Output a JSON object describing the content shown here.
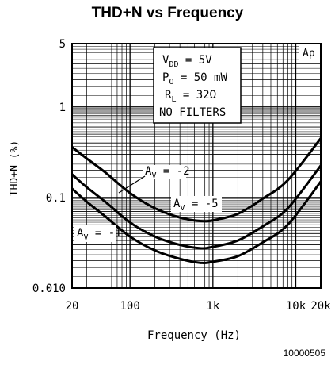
{
  "figure_id": "10000505",
  "colors": {
    "ink": "#000000",
    "background": "#ffffff"
  },
  "chart_data": {
    "type": "line",
    "title": "THD+N vs Frequency",
    "xlabel": "Frequency (Hz)",
    "ylabel": "THD+N (%)",
    "x_scale": "log",
    "y_scale": "log",
    "xlim": [
      20,
      20000
    ],
    "ylim": [
      0.01,
      5
    ],
    "grid": true,
    "x_ticks": [
      {
        "value": 20,
        "label": "20"
      },
      {
        "value": 100,
        "label": "100"
      },
      {
        "value": 1000,
        "label": "1k"
      },
      {
        "value": 10000,
        "label": "10k"
      },
      {
        "value": 20000,
        "label": "20k"
      }
    ],
    "y_ticks": [
      {
        "value": 5,
        "label": "5"
      },
      {
        "value": 1,
        "label": "1"
      },
      {
        "value": 0.1,
        "label": "0.1"
      },
      {
        "value": 0.01,
        "label": "0.010"
      }
    ],
    "conditions_box": {
      "vdd": {
        "main": "V",
        "sub": "DD",
        "rest": " = 5V"
      },
      "po": {
        "main": "P",
        "sub": "O",
        "rest": " = 50 mW"
      },
      "rl": {
        "main": "R",
        "sub": "L",
        "rest": " = 32Ω"
      },
      "filters": "NO FILTERS"
    },
    "corner_label": "Ap",
    "series": [
      {
        "label_main": "A",
        "label_sub": "V",
        "label_rest": " = -1",
        "x": [
          20,
          30,
          50,
          100,
          200,
          400,
          700,
          1000,
          2000,
          4000,
          8000,
          20000
        ],
        "y": [
          0.125,
          0.09,
          0.062,
          0.037,
          0.026,
          0.021,
          0.019,
          0.0195,
          0.0225,
          0.032,
          0.05,
          0.15
        ]
      },
      {
        "label_main": "A",
        "label_sub": "V",
        "label_rest": " = -5",
        "x": [
          20,
          30,
          50,
          100,
          200,
          400,
          700,
          1000,
          2000,
          4000,
          8000,
          20000
        ],
        "y": [
          0.18,
          0.13,
          0.09,
          0.053,
          0.037,
          0.03,
          0.0275,
          0.0285,
          0.0335,
          0.048,
          0.076,
          0.225
        ]
      },
      {
        "label_main": "A",
        "label_sub": "V",
        "label_rest": " = -2",
        "x": [
          20,
          30,
          50,
          100,
          200,
          400,
          700,
          1000,
          2000,
          4000,
          8000,
          20000
        ],
        "y": [
          0.36,
          0.27,
          0.19,
          0.112,
          0.076,
          0.06,
          0.055,
          0.056,
          0.066,
          0.097,
          0.155,
          0.45
        ]
      }
    ]
  }
}
